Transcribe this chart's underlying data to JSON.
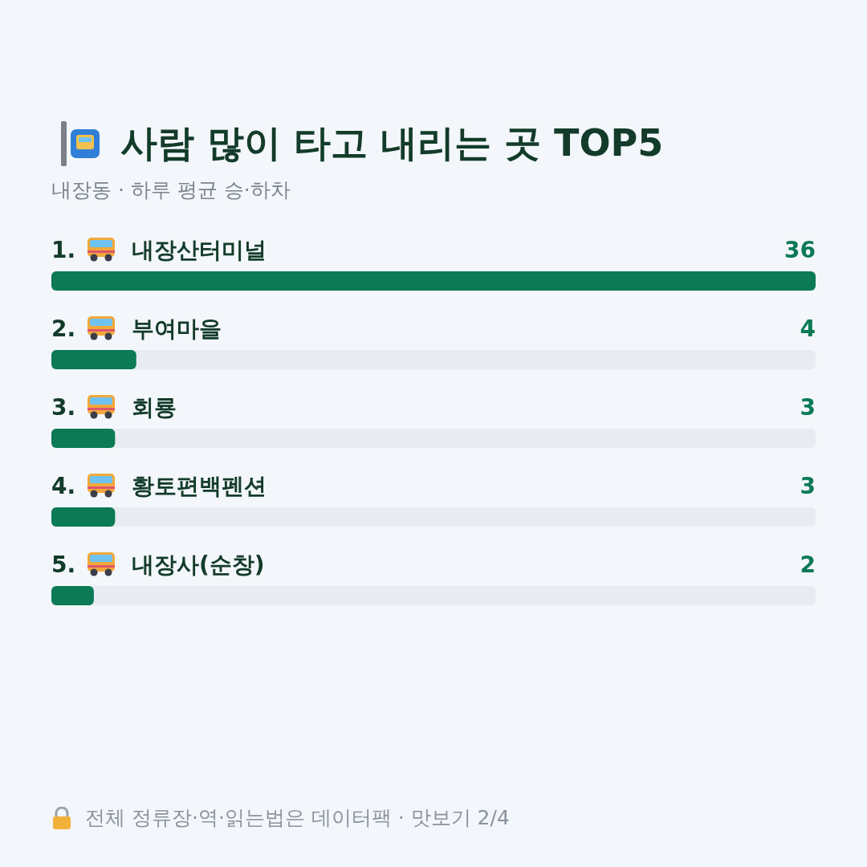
{
  "chart_data": {
    "type": "bar",
    "orientation": "horizontal",
    "title": "사람 많이 타고 내리는 곳 TOP5",
    "subtitle": "내장동 · 하루 평균 승·하차",
    "categories": [
      "1. 내장산터미널",
      "2. 부여마을",
      "3. 회룡",
      "4. 황토편백펜션",
      "5. 내장사(순창)"
    ],
    "values": [
      36,
      4,
      3,
      3,
      2
    ],
    "color": "#0b7a55",
    "data_labels": true,
    "annotations": [
      "전체 정류장·역·읽는법은 데이터팩 · 맛보기 2/4"
    ]
  }
}
